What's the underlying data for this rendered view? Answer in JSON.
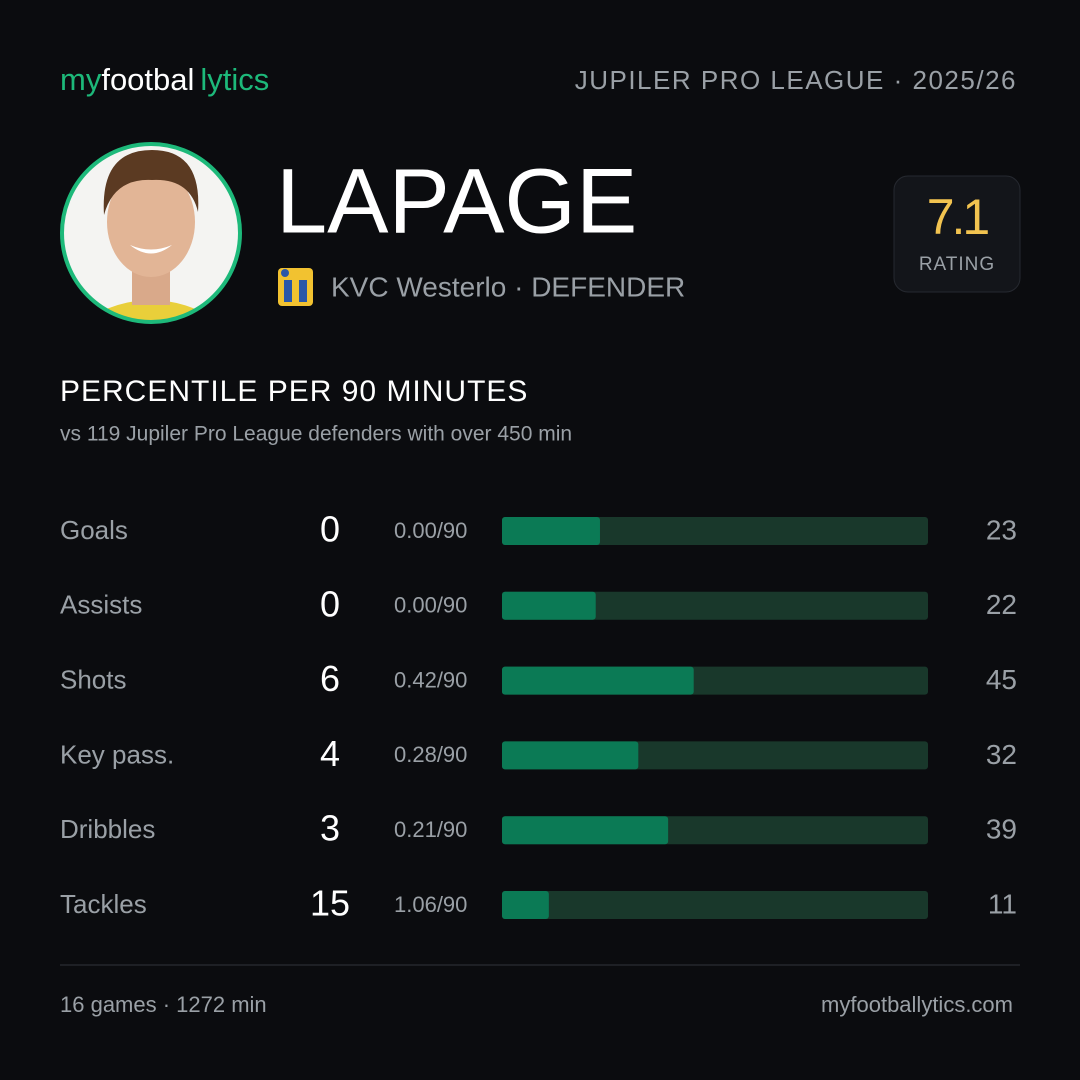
{
  "brand": [
    "my",
    "footbal",
    "lytics"
  ],
  "league": "JUPILER PRO LEAGUE · 2025/26",
  "player": {
    "name": "LAPAGE",
    "club_position": "KVC Westerlo · DEFENDER"
  },
  "rating": {
    "value": 7.1,
    "label": "RATING"
  },
  "chart_data": {
    "type": "bar",
    "title": "PERCENTILE PER 90 MINUTES",
    "subtitle": "vs 119 Jupiler Pro League defenders with over 450 min",
    "categories": [
      "Goals",
      "Assists",
      "Shots",
      "Key pass.",
      "Dribbles",
      "Tackles"
    ],
    "totals": [
      0,
      0,
      6,
      4,
      3,
      15
    ],
    "per90": [
      "0.00/90",
      "0.00/90",
      "0.42/90",
      "0.28/90",
      "0.21/90",
      "1.06/90"
    ],
    "values": [
      23,
      22,
      45,
      32,
      39,
      11
    ],
    "xlim": [
      0,
      100
    ],
    "color": "#0b7a55",
    "track_color": "#19382b"
  },
  "footer": {
    "left": "16 games · 1272 min",
    "right": "myfootballytics.com"
  }
}
